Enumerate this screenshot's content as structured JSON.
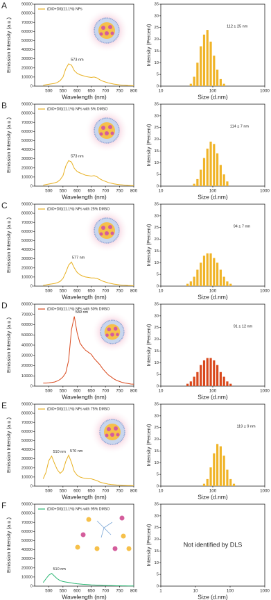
{
  "chart_data": [
    {
      "type": "line",
      "panel": "A",
      "xlabel": "Wavelength (nm)",
      "ylabel": "Emission Intensity (a.u.)",
      "x": [
        480,
        490,
        500,
        510,
        520,
        530,
        540,
        550,
        560,
        570,
        580,
        590,
        600,
        610,
        620,
        630,
        640,
        650,
        660,
        670,
        680,
        690,
        700,
        710,
        720,
        730,
        740,
        750,
        760,
        770,
        780,
        790,
        800
      ],
      "series": [
        {
          "name": "(DiO+DiI)(11.1%) NPs",
          "color": "#e8b020",
          "values": [
            1000,
            1500,
            2000,
            2500,
            3000,
            4000,
            6000,
            10000,
            19000,
            24500,
            23000,
            17000,
            14000,
            12500,
            11500,
            10500,
            10000,
            9500,
            10000,
            9000,
            7000,
            5500,
            4500,
            3500,
            2800,
            2200,
            1800,
            1400,
            1100,
            900,
            700,
            500,
            400
          ]
        }
      ],
      "xlim": [
        450,
        800
      ],
      "xticks": [
        500,
        550,
        600,
        650,
        700,
        750,
        800
      ],
      "ylim": [
        0,
        90000
      ],
      "yticks": [
        0,
        10000,
        20000,
        30000,
        40000,
        50000,
        60000,
        70000,
        80000,
        90000
      ],
      "annotations": [
        {
          "text": "573 nm",
          "x": 573
        }
      ]
    },
    {
      "type": "bar",
      "xlabel": "Size (d.nm)",
      "ylabel": "Intensity (Percent)",
      "xscale": "log",
      "color": "#f0b428",
      "x": [
        37.8,
        43.8,
        50.7,
        58.8,
        68.1,
        78.8,
        91.3,
        105.7,
        122.4,
        141.8,
        164.2
      ],
      "values": [
        1,
        4,
        10,
        17,
        22,
        24,
        19,
        13,
        7,
        3,
        1
      ],
      "xlim": [
        10,
        1000
      ],
      "xticks": [
        10,
        100,
        1000
      ],
      "ylim": [
        0,
        35
      ],
      "yticks": [
        0,
        5,
        10,
        15,
        20,
        25,
        30,
        35
      ],
      "annotation": "112 ± 25 nm"
    },
    {
      "type": "line",
      "panel": "B",
      "xlabel": "Wavelength (nm)",
      "ylabel": "Emission Intensity (a.u.)",
      "x": [
        480,
        490,
        500,
        510,
        520,
        530,
        540,
        550,
        560,
        570,
        580,
        590,
        600,
        610,
        620,
        630,
        640,
        650,
        660,
        670,
        680,
        690,
        700,
        710,
        720,
        730,
        740,
        750,
        760,
        770,
        780,
        790,
        800
      ],
      "series": [
        {
          "name": "(DiO+DiI)(11.1%) NPs with 5% DMSO",
          "color": "#e8b020",
          "values": [
            1100,
            1700,
            2300,
            2900,
            3500,
            4600,
            7000,
            11500,
            22000,
            28000,
            26500,
            19500,
            16000,
            14500,
            13200,
            12000,
            11500,
            11000,
            11500,
            10300,
            8000,
            6300,
            5200,
            4000,
            3200,
            2500,
            2000,
            1600,
            1300,
            1000,
            800,
            600,
            450
          ]
        }
      ],
      "xlim": [
        450,
        800
      ],
      "xticks": [
        500,
        550,
        600,
        650,
        700,
        750,
        800
      ],
      "ylim": [
        0,
        90000
      ],
      "yticks": [
        0,
        10000,
        20000,
        30000,
        40000,
        50000,
        60000,
        70000,
        80000,
        90000
      ],
      "annotations": [
        {
          "text": "573 nm",
          "x": 573
        }
      ]
    },
    {
      "type": "bar",
      "xlabel": "Size (d.nm)",
      "ylabel": "Intensity (Percent)",
      "xscale": "log",
      "color": "#f0b428",
      "x": [
        43.8,
        50.7,
        58.8,
        68.1,
        78.8,
        91.3,
        105.7,
        122.4,
        141.8,
        164.2,
        190.1
      ],
      "values": [
        1,
        3,
        7,
        12,
        16,
        19,
        18,
        14,
        9,
        5,
        2
      ],
      "xlim": [
        10,
        1000
      ],
      "xticks": [
        10,
        100,
        1000
      ],
      "ylim": [
        0,
        35
      ],
      "yticks": [
        0,
        5,
        10,
        15,
        20,
        25,
        30,
        35
      ],
      "annotation": "114 ± 7 nm"
    },
    {
      "type": "line",
      "panel": "C",
      "xlabel": "Wavelength (nm)",
      "ylabel": "Emission Intensity (a.u.)",
      "x": [
        480,
        490,
        500,
        510,
        520,
        530,
        540,
        550,
        560,
        570,
        580,
        590,
        600,
        610,
        620,
        630,
        640,
        650,
        660,
        670,
        680,
        690,
        700,
        710,
        720,
        730,
        740,
        750,
        760,
        770,
        780,
        790,
        800
      ],
      "series": [
        {
          "name": "(DiO+DiI)(11.1%) NPs with 25% DMSO",
          "color": "#e8b020",
          "values": [
            1000,
            1400,
            1900,
            2400,
            2900,
            3700,
            5200,
            8500,
            15000,
            23000,
            26500,
            20000,
            15000,
            12500,
            11000,
            10000,
            9500,
            9000,
            9000,
            8500,
            7000,
            5500,
            4500,
            3500,
            2800,
            2200,
            1800,
            1400,
            1100,
            900,
            700,
            500,
            400
          ]
        }
      ],
      "xlim": [
        450,
        800
      ],
      "xticks": [
        500,
        550,
        600,
        650,
        700,
        750,
        800
      ],
      "ylim": [
        0,
        90000
      ],
      "yticks": [
        0,
        10000,
        20000,
        30000,
        40000,
        50000,
        60000,
        70000,
        80000,
        90000
      ],
      "annotations": [
        {
          "text": "577 nm",
          "x": 577
        }
      ]
    },
    {
      "type": "bar",
      "xlabel": "Size (d.nm)",
      "ylabel": "Intensity (Percent)",
      "xscale": "log",
      "color": "#f0b428",
      "x": [
        32.7,
        37.8,
        43.8,
        50.7,
        58.8,
        68.1,
        78.8,
        91.3,
        105.7,
        122.4,
        141.8,
        164.2,
        190.1,
        220.2
      ],
      "values": [
        1,
        2,
        4,
        7,
        10,
        13,
        14,
        14,
        12,
        10,
        7,
        4,
        2,
        1
      ],
      "xlim": [
        10,
        1000
      ],
      "xticks": [
        10,
        100,
        1000
      ],
      "ylim": [
        0,
        35
      ],
      "yticks": [
        0,
        5,
        10,
        15,
        20,
        25,
        30,
        35
      ],
      "annotation": "94 ± 7 nm"
    },
    {
      "type": "line",
      "panel": "D",
      "xlabel": "Wavelength (nm)",
      "ylabel": "Emission Intensity (a.u.)",
      "x": [
        480,
        490,
        500,
        510,
        520,
        530,
        540,
        550,
        560,
        570,
        580,
        590,
        600,
        610,
        620,
        630,
        640,
        650,
        660,
        670,
        680,
        690,
        700,
        710,
        720,
        730,
        740,
        750,
        760,
        770,
        780,
        790,
        800
      ],
      "series": [
        {
          "name": "(DiO+DiI)(11.1%) NPs with 50% DMSO",
          "color": "#d9481c",
          "values": [
            3000,
            3000,
            3200,
            3500,
            4000,
            5000,
            6500,
            9000,
            13000,
            25000,
            55000,
            68000,
            52000,
            42000,
            38000,
            35000,
            33000,
            31000,
            27000,
            24000,
            21000,
            17000,
            14000,
            11000,
            9000,
            7000,
            5500,
            4500,
            3500,
            3000,
            2500,
            2000,
            1800
          ]
        }
      ],
      "xlim": [
        450,
        800
      ],
      "xticks": [
        500,
        550,
        600,
        650,
        700,
        750,
        800
      ],
      "ylim": [
        0,
        80000
      ],
      "yticks": [
        0,
        10000,
        20000,
        30000,
        40000,
        50000,
        60000,
        70000,
        80000
      ],
      "annotations": [
        {
          "text": "589 nm",
          "x": 589
        }
      ]
    },
    {
      "type": "bar",
      "xlabel": "Size (d.nm)",
      "ylabel": "Intensity (Percent)",
      "xscale": "log",
      "color": "#d9481c",
      "x": [
        32.7,
        37.8,
        43.8,
        50.7,
        58.8,
        68.1,
        78.8,
        91.3,
        105.7,
        122.4,
        141.8,
        164.2,
        190.1,
        220.2
      ],
      "values": [
        1,
        2,
        4,
        6,
        9,
        11,
        12,
        12,
        11,
        9,
        6,
        4,
        2,
        1
      ],
      "xlim": [
        10,
        1000
      ],
      "xticks": [
        10,
        100,
        1000
      ],
      "ylim": [
        0,
        35
      ],
      "yticks": [
        0,
        5,
        10,
        15,
        20,
        25,
        30,
        35
      ],
      "annotation": "91 ± 12 nm"
    },
    {
      "type": "line",
      "panel": "E",
      "xlabel": "Wavelength (nm)",
      "ylabel": "Emission Intensity (a.u.)",
      "x": [
        480,
        490,
        500,
        510,
        520,
        530,
        540,
        550,
        560,
        570,
        580,
        590,
        600,
        610,
        620,
        630,
        640,
        650,
        660,
        670,
        680,
        690,
        700,
        710,
        720,
        730,
        740,
        750,
        760,
        770,
        780,
        790,
        800
      ],
      "series": [
        {
          "name": "(DiO+DiI)(11.1%) NPs with 75% DMSO",
          "color": "#e8b020",
          "values": [
            8000,
            15000,
            28000,
            33000,
            25000,
            18000,
            14000,
            17000,
            27000,
            34000,
            26000,
            16000,
            12000,
            10000,
            9000,
            8500,
            8000,
            8000,
            7000,
            6000,
            4500,
            3500,
            2800,
            2200,
            1800,
            1500,
            1200,
            1000,
            800,
            700,
            600,
            500,
            400
          ]
        }
      ],
      "xlim": [
        450,
        800
      ],
      "xticks": [
        500,
        550,
        600,
        650,
        700,
        750,
        800
      ],
      "ylim": [
        0,
        90000
      ],
      "yticks": [
        0,
        10000,
        20000,
        30000,
        40000,
        50000,
        60000,
        70000,
        80000,
        90000
      ],
      "annotations": [
        {
          "text": "510 nm",
          "x": 510
        },
        {
          "text": "570 nm",
          "x": 570
        }
      ]
    },
    {
      "type": "bar",
      "xlabel": "Size (d.nm)",
      "ylabel": "Intensity (Percent)",
      "xscale": "log",
      "color": "#f0b428",
      "x": [
        68.1,
        78.8,
        91.3,
        105.7,
        122.4,
        141.8,
        164.2,
        190.1,
        220.2,
        255.0
      ],
      "values": [
        1,
        3,
        8,
        14,
        18,
        17,
        13,
        7,
        3,
        1
      ],
      "xlim": [
        10,
        1000
      ],
      "xticks": [
        10,
        100,
        1000
      ],
      "ylim": [
        0,
        35
      ],
      "yticks": [
        0,
        5,
        10,
        15,
        20,
        25,
        30,
        35
      ],
      "annotation": "119 ± 9 nm"
    },
    {
      "type": "line",
      "panel": "F",
      "xlabel": "Wavelength (nm)",
      "ylabel": "Emission Intensity (a.u.)",
      "x": [
        480,
        490,
        500,
        510,
        520,
        530,
        540,
        550,
        560,
        570,
        580,
        590,
        600,
        610,
        620,
        630,
        640,
        650,
        660,
        670,
        680,
        690,
        700,
        710,
        720,
        730,
        740,
        750,
        760,
        770,
        780,
        790,
        800
      ],
      "series": [
        {
          "name": "(DiO+DiI)(11.1%) NPs with 95% DMSO",
          "color": "#2bb673",
          "values": [
            4000,
            8000,
            12000,
            14000,
            11000,
            8000,
            6000,
            5000,
            4500,
            4000,
            3500,
            3000,
            2600,
            2300,
            2000,
            1800,
            1600,
            1400,
            1200,
            1000,
            900,
            800,
            700,
            600,
            500,
            450,
            400,
            350,
            300,
            300,
            250,
            250,
            200
          ]
        }
      ],
      "xlim": [
        450,
        800
      ],
      "xticks": [
        500,
        550,
        600,
        650,
        700,
        750,
        800
      ],
      "ylim": [
        0,
        90000
      ],
      "yticks": [
        0,
        10000,
        20000,
        30000,
        40000,
        50000,
        60000,
        70000,
        80000,
        90000
      ],
      "annotations": [
        {
          "text": "510 nm",
          "x": 510
        }
      ]
    },
    {
      "type": "bar",
      "xlabel": "Size (d.nm)",
      "ylabel": "Intensity (Percent)",
      "xscale": "log",
      "color": "#f0b428",
      "xlim": [
        1,
        1000
      ],
      "xticks": [
        1,
        10,
        100,
        1000
      ],
      "ylim": [
        0,
        35
      ],
      "yticks": [
        0,
        5,
        10,
        15,
        20,
        25,
        30,
        35
      ],
      "annotation": "Not identified by DLS"
    }
  ]
}
